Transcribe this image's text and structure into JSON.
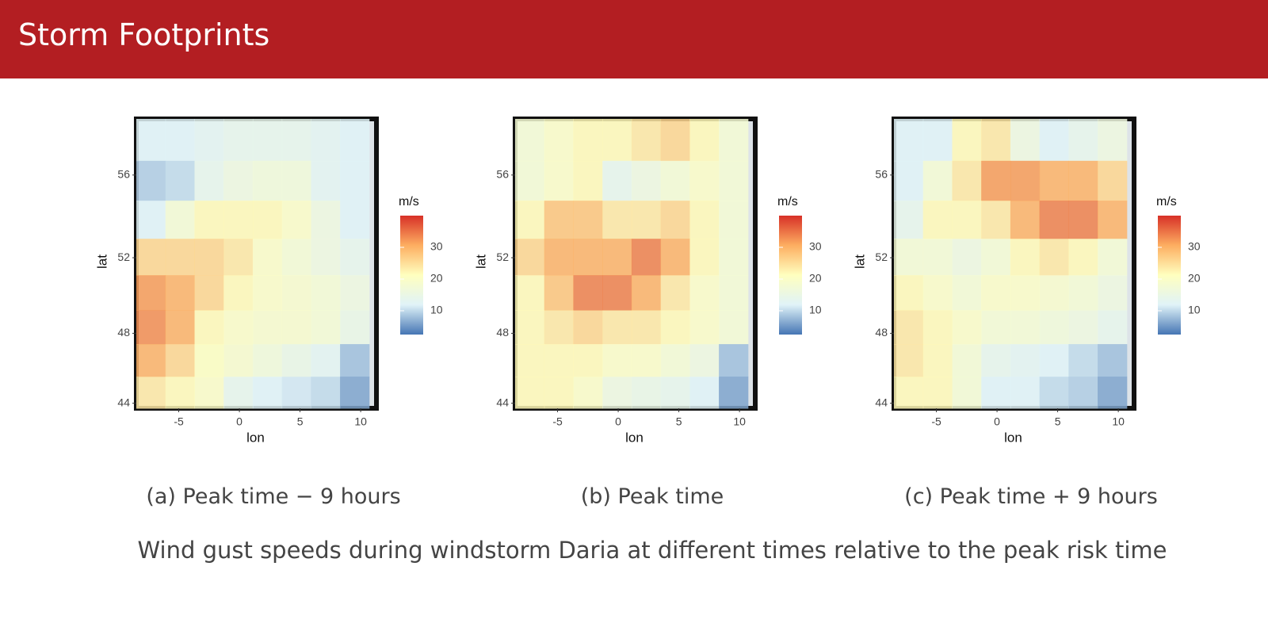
{
  "header": {
    "title": "Storm Footprints"
  },
  "chart_data": [
    {
      "type": "heatmap",
      "label": "(a)",
      "caption": "Peak time − 9 hours",
      "xlabel": "lon",
      "ylabel": "lat",
      "projection": "mercator",
      "xlim": [
        -8.5,
        11.3
      ],
      "ylim": [
        43.7,
        58.5
      ],
      "xticks": [
        -5,
        0,
        5,
        10
      ],
      "yticks": [
        44,
        48,
        52,
        56
      ],
      "colorbar_title": "m/s",
      "clim": [
        2.5,
        40
      ],
      "cticks": [
        10,
        20,
        30
      ],
      "colors": [
        "#4575b4",
        "#e0f3f8",
        "#ffffbf",
        "#fdae61",
        "#d73027"
      ],
      "x": [
        -7.3,
        -4.9,
        -2.5,
        -0.1,
        2.3,
        4.7,
        7.1,
        9.5
      ],
      "y": [
        57.575,
        55.725,
        53.875,
        52.025,
        50.175,
        48.325,
        46.475,
        44.625
      ],
      "z": [
        [
          12,
          12,
          13,
          14,
          14,
          14,
          13,
          12
        ],
        [
          9,
          10,
          14,
          16,
          17,
          17,
          13,
          12
        ],
        [
          12,
          18,
          22,
          22,
          22,
          20,
          16,
          12
        ],
        [
          26,
          26,
          26,
          24,
          20,
          18,
          16,
          14
        ],
        [
          32,
          30,
          26,
          22,
          20,
          19,
          18,
          16
        ],
        [
          33,
          30,
          22,
          20,
          19,
          19,
          18,
          15
        ],
        [
          30,
          26,
          21,
          19,
          17,
          15,
          13,
          8
        ],
        [
          24,
          22,
          20,
          14,
          12,
          11,
          10,
          6
        ]
      ]
    },
    {
      "type": "heatmap",
      "label": "(b)",
      "caption": "Peak time",
      "xlabel": "lon",
      "ylabel": "lat",
      "projection": "mercator",
      "xlim": [
        -8.5,
        11.3
      ],
      "ylim": [
        43.7,
        58.5
      ],
      "xticks": [
        -5,
        0,
        5,
        10
      ],
      "yticks": [
        44,
        48,
        52,
        56
      ],
      "colorbar_title": "m/s",
      "clim": [
        2.5,
        40
      ],
      "cticks": [
        10,
        20,
        30
      ],
      "colors": [
        "#4575b4",
        "#e0f3f8",
        "#ffffbf",
        "#fdae61",
        "#d73027"
      ],
      "x": [
        -7.3,
        -4.9,
        -2.5,
        -0.1,
        2.3,
        4.7,
        7.1,
        9.5
      ],
      "y": [
        57.575,
        55.725,
        53.875,
        52.025,
        50.175,
        48.325,
        46.475,
        44.625
      ],
      "z": [
        [
          18,
          20,
          22,
          22,
          24,
          26,
          22,
          18
        ],
        [
          18,
          20,
          22,
          14,
          16,
          18,
          20,
          18
        ],
        [
          22,
          28,
          28,
          24,
          24,
          26,
          22,
          18
        ],
        [
          26,
          30,
          30,
          30,
          34,
          30,
          22,
          18
        ],
        [
          22,
          28,
          34,
          34,
          30,
          24,
          20,
          18
        ],
        [
          22,
          24,
          26,
          24,
          24,
          22,
          20,
          18
        ],
        [
          22,
          22,
          22,
          20,
          20,
          18,
          16,
          8
        ],
        [
          22,
          22,
          20,
          16,
          15,
          14,
          12,
          6
        ]
      ]
    },
    {
      "type": "heatmap",
      "label": "(c)",
      "caption": "Peak time + 9 hours",
      "xlabel": "lon",
      "ylabel": "lat",
      "projection": "mercator",
      "xlim": [
        -8.5,
        11.3
      ],
      "ylim": [
        43.7,
        58.5
      ],
      "xticks": [
        -5,
        0,
        5,
        10
      ],
      "yticks": [
        44,
        48,
        52,
        56
      ],
      "colorbar_title": "m/s",
      "clim": [
        2.5,
        40
      ],
      "cticks": [
        10,
        20,
        30
      ],
      "colors": [
        "#4575b4",
        "#e0f3f8",
        "#ffffbf",
        "#fdae61",
        "#d73027"
      ],
      "x": [
        -7.3,
        -4.9,
        -2.5,
        -0.1,
        2.3,
        4.7,
        7.1,
        9.5
      ],
      "y": [
        57.575,
        55.725,
        53.875,
        52.025,
        50.175,
        48.325,
        46.475,
        44.625
      ],
      "z": [
        [
          12,
          12,
          22,
          24,
          16,
          12,
          14,
          16
        ],
        [
          12,
          18,
          24,
          32,
          32,
          30,
          30,
          26
        ],
        [
          14,
          22,
          22,
          24,
          30,
          34,
          34,
          30
        ],
        [
          18,
          18,
          16,
          18,
          22,
          24,
          22,
          18
        ],
        [
          22,
          20,
          18,
          20,
          20,
          19,
          18,
          16
        ],
        [
          24,
          22,
          20,
          18,
          18,
          17,
          16,
          14
        ],
        [
          24,
          22,
          18,
          14,
          13,
          12,
          10,
          8
        ],
        [
          22,
          22,
          18,
          12,
          12,
          10,
          9,
          6
        ]
      ]
    }
  ],
  "caption": "Wind gust speeds during windstorm Daria at different times relative to the peak risk time"
}
